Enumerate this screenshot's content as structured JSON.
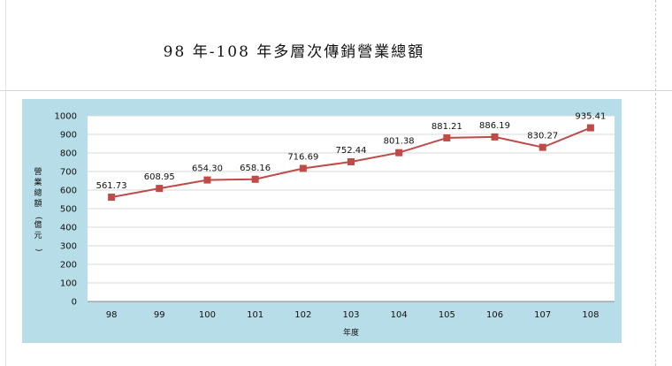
{
  "page": {
    "title": "98 年-108 年多層次傳銷營業總額"
  },
  "chart_data": {
    "type": "line",
    "title": "98 年-108 年多層次傳銷營業總額",
    "xlabel": "年度",
    "ylabel": "營業總額(億元)",
    "categories": [
      "98",
      "99",
      "100",
      "101",
      "102",
      "103",
      "104",
      "105",
      "106",
      "107",
      "108"
    ],
    "values": [
      561.73,
      608.95,
      654.3,
      658.16,
      716.69,
      752.44,
      801.38,
      881.21,
      886.19,
      830.27,
      935.41
    ],
    "data_labels": [
      "561.73",
      "608.95",
      "654.30",
      "658.16",
      "716.69",
      "752.44",
      "801.38",
      "881.21",
      "886.19",
      "830.27",
      "935.41"
    ],
    "yticks": [
      "0",
      "100",
      "200",
      "300",
      "400",
      "500",
      "600",
      "700",
      "800",
      "900",
      "1000"
    ],
    "ylim": [
      0,
      1000
    ],
    "grid": true,
    "legend": "none",
    "colors": {
      "line": "#be4b48",
      "marker": "#be4b48",
      "panel": "#b7dde8",
      "plot": "#ffffff",
      "grid": "#d9d9d9"
    }
  }
}
